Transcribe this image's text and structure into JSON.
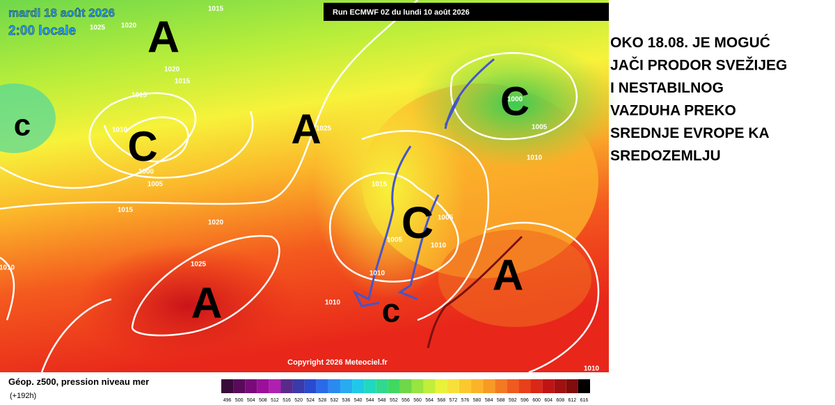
{
  "header": {
    "date": "mardi 18 août 2026",
    "time": "2:00 locale",
    "run": "Run ECMWF 0Z du lundi 10 août 2026"
  },
  "map": {
    "centers": [
      "A",
      "C",
      "c",
      "A",
      "C",
      "A",
      "A",
      "C",
      "c"
    ],
    "isobars": [
      "1015",
      "1020",
      "1025",
      "1020",
      "1015",
      "1015",
      "1010",
      "1000",
      "1005",
      "1015",
      "1020",
      "1025",
      "1010",
      "1025",
      "1000",
      "1005",
      "1010",
      "1015",
      "1005",
      "1005",
      "1010",
      "1010",
      "1010",
      "1010"
    ],
    "copyright": "Copyright 2026 Meteociel.fr"
  },
  "legend": {
    "title": "Géop. z500, pression niveau mer",
    "subtitle": "(+192h)",
    "scale": [
      496,
      500,
      504,
      508,
      512,
      516,
      520,
      524,
      528,
      532,
      536,
      540,
      544,
      548,
      552,
      556,
      560,
      564,
      568,
      572,
      576,
      580,
      584,
      588,
      592,
      596,
      600,
      604,
      608,
      612,
      616
    ]
  },
  "annotation": [
    "OKO 18.08. JE MOGUĆ",
    "JAČI PRODOR SVEŽIJEG",
    "I NESTABILNOG",
    "VAZDUHA PREKO",
    "SREDNJE EVROPE KA",
    "SREDOZEMLJU"
  ]
}
